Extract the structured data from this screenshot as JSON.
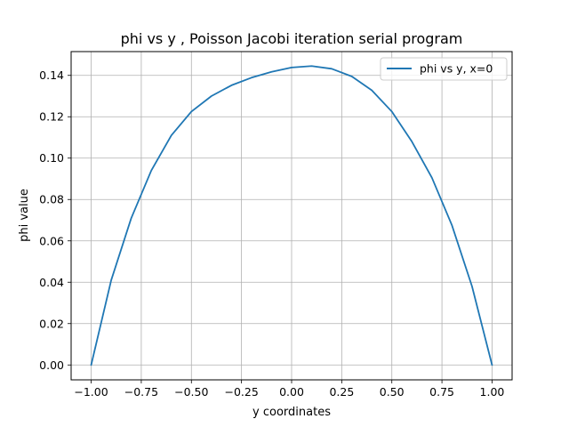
{
  "chart_data": {
    "type": "line",
    "title": "phi vs y  , Poisson Jacobi iteration serial program",
    "xlabel": "y coordinates",
    "ylabel": "phi value",
    "xlim": [
      -1.1,
      1.1
    ],
    "ylim": [
      -0.0072,
      0.1515
    ],
    "grid": true,
    "legend_position": "top-right",
    "xticks": [
      -1.0,
      -0.75,
      -0.5,
      -0.25,
      0.0,
      0.25,
      0.5,
      0.75,
      1.0
    ],
    "xtick_labels": [
      "−1.00",
      "−0.75",
      "−0.50",
      "−0.25",
      "0.00",
      "0.25",
      "0.50",
      "0.75",
      "1.00"
    ],
    "yticks": [
      0.0,
      0.02,
      0.04,
      0.06,
      0.08,
      0.1,
      0.12,
      0.14
    ],
    "ytick_labels": [
      "0.00",
      "0.02",
      "0.04",
      "0.06",
      "0.08",
      "0.10",
      "0.12",
      "0.14"
    ],
    "series": [
      {
        "name": "phi vs y, x=0",
        "color": "#1f77b4",
        "x": [
          -1.0,
          -0.9,
          -0.8,
          -0.7,
          -0.6,
          -0.5,
          -0.4,
          -0.3,
          -0.2,
          -0.1,
          0.0,
          0.1,
          0.2,
          0.3,
          0.4,
          0.5,
          0.6,
          0.7,
          0.8,
          0.9,
          1.0
        ],
        "y": [
          0.0,
          0.041,
          0.071,
          0.094,
          0.111,
          0.1225,
          0.13,
          0.1352,
          0.1389,
          0.1417,
          0.1438,
          0.1445,
          0.1432,
          0.1395,
          0.1328,
          0.1225,
          0.108,
          0.0905,
          0.0675,
          0.038,
          0.0
        ]
      }
    ]
  }
}
